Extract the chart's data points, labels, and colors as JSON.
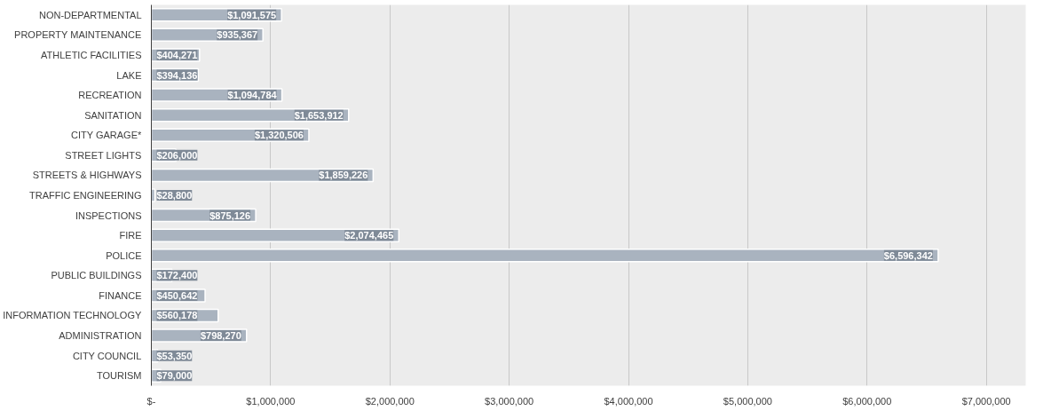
{
  "chart_data": {
    "type": "bar",
    "orientation": "horizontal",
    "categories": [
      "NON-DEPARTMENTAL",
      "PROPERTY MAINTENANCE",
      "ATHLETIC FACILITIES",
      "LAKE",
      "RECREATION",
      "SANITATION",
      "CITY GARAGE*",
      "STREET LIGHTS",
      "STREETS & HIGHWAYS",
      "TRAFFIC ENGINEERING",
      "INSPECTIONS",
      "FIRE",
      "POLICE",
      "PUBLIC BUILDINGS",
      "FINANCE",
      "INFORMATION TECHNOLOGY",
      "ADMINISTRATION",
      "CITY COUNCIL",
      "TOURISM"
    ],
    "values": [
      1091575,
      935367,
      404271,
      394136,
      1094784,
      1653912,
      1320506,
      206000,
      1859226,
      28800,
      875126,
      2074465,
      6596342,
      172400,
      450642,
      560178,
      798270,
      53350,
      79000
    ],
    "value_labels": [
      "$1,091,575",
      "$935,367",
      "$404,271",
      "$394,136",
      "$1,094,784",
      "$1,653,912",
      "$1,320,506",
      "$206,000",
      "$1,859,226",
      "$28,800",
      "$875,126",
      "$2,074,465",
      "$6,596,342",
      "$172,400",
      "$450,642",
      "$560,178",
      "$798,270",
      "$53,350",
      "$79,000"
    ],
    "color": "#a9b3bf",
    "xlim": [
      0,
      7330000
    ],
    "xticks": [
      {
        "value": 0,
        "label": "$-"
      },
      {
        "value": 1000000,
        "label": "$1,000,000"
      },
      {
        "value": 2000000,
        "label": "$2,000,000"
      },
      {
        "value": 3000000,
        "label": "$3,000,000"
      },
      {
        "value": 4000000,
        "label": "$4,000,000"
      },
      {
        "value": 5000000,
        "label": "$5,000,000"
      },
      {
        "value": 6000000,
        "label": "$6,000,000"
      },
      {
        "value": 7000000,
        "label": "$7,000,000"
      }
    ],
    "grid": "x"
  }
}
